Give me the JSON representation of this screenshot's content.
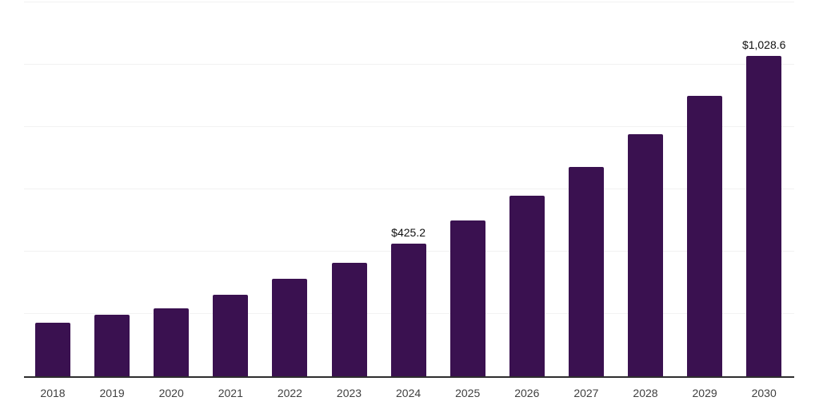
{
  "chart_data": {
    "type": "bar",
    "title": "",
    "xlabel": "",
    "ylabel": "",
    "categories": [
      "2018",
      "2019",
      "2020",
      "2021",
      "2022",
      "2023",
      "2024",
      "2025",
      "2026",
      "2027",
      "2028",
      "2029",
      "2030"
    ],
    "values": [
      172,
      197,
      219,
      262,
      312,
      363,
      425.2,
      500,
      579,
      673,
      778,
      899,
      1028.6
    ],
    "ylim": [
      0,
      1200
    ],
    "gridline_step": 200,
    "grid": true,
    "y_tick_labels_visible": false,
    "legend": "none",
    "annotations": [
      {
        "category": "2024",
        "text": "$425.2"
      },
      {
        "category": "2030",
        "text": "$1,028.6"
      }
    ],
    "colors": {
      "bar": "#3a1150",
      "axis_line": "#2e2e2e",
      "gridline": "#f2f2f2",
      "tick_label": "#404040",
      "data_label": "#111111",
      "background": "#ffffff"
    }
  }
}
